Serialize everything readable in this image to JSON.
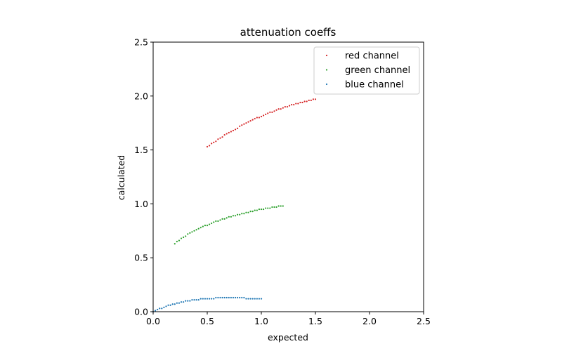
{
  "chart_data": {
    "type": "scatter",
    "title": "attenuation coeffs",
    "xlabel": "expected",
    "ylabel": "calculated",
    "xlim": [
      0,
      2.5
    ],
    "ylim": [
      0,
      2.5
    ],
    "xticks": [
      "0.0",
      "0.5",
      "1.0",
      "1.5",
      "2.0",
      "2.5"
    ],
    "yticks": [
      "0.0",
      "0.5",
      "1.0",
      "1.5",
      "2.0",
      "2.5"
    ],
    "grid": false,
    "legend_position": "top-right",
    "series": [
      {
        "name": "red channel",
        "color": "#d62728",
        "x": [
          0.5,
          0.52,
          0.54,
          0.56,
          0.58,
          0.6,
          0.62,
          0.64,
          0.66,
          0.68,
          0.7,
          0.72,
          0.74,
          0.76,
          0.78,
          0.8,
          0.82,
          0.84,
          0.86,
          0.88,
          0.9,
          0.92,
          0.94,
          0.96,
          0.98,
          1.0,
          1.02,
          1.04,
          1.06,
          1.08,
          1.1,
          1.12,
          1.14,
          1.16,
          1.18,
          1.2,
          1.22,
          1.24,
          1.26,
          1.28,
          1.3,
          1.32,
          1.34,
          1.36,
          1.38,
          1.4,
          1.42,
          1.44,
          1.46,
          1.48,
          1.5
        ],
        "y": [
          1.53,
          1.54,
          1.56,
          1.57,
          1.58,
          1.6,
          1.61,
          1.62,
          1.64,
          1.65,
          1.66,
          1.67,
          1.68,
          1.69,
          1.7,
          1.72,
          1.73,
          1.74,
          1.75,
          1.76,
          1.77,
          1.78,
          1.79,
          1.8,
          1.8,
          1.81,
          1.82,
          1.83,
          1.84,
          1.85,
          1.85,
          1.86,
          1.87,
          1.88,
          1.88,
          1.89,
          1.9,
          1.9,
          1.91,
          1.92,
          1.92,
          1.93,
          1.93,
          1.94,
          1.94,
          1.95,
          1.95,
          1.96,
          1.96,
          1.97,
          1.97
        ]
      },
      {
        "name": "green channel",
        "color": "#2ca02c",
        "x": [
          0.2,
          0.22,
          0.24,
          0.26,
          0.28,
          0.3,
          0.32,
          0.34,
          0.36,
          0.38,
          0.4,
          0.42,
          0.44,
          0.46,
          0.48,
          0.5,
          0.52,
          0.54,
          0.56,
          0.58,
          0.6,
          0.62,
          0.64,
          0.66,
          0.68,
          0.7,
          0.72,
          0.74,
          0.76,
          0.78,
          0.8,
          0.82,
          0.84,
          0.86,
          0.88,
          0.9,
          0.92,
          0.94,
          0.96,
          0.98,
          1.0,
          1.02,
          1.04,
          1.06,
          1.08,
          1.1,
          1.12,
          1.14,
          1.16,
          1.18,
          1.2
        ],
        "y": [
          0.63,
          0.65,
          0.66,
          0.68,
          0.69,
          0.7,
          0.72,
          0.73,
          0.74,
          0.75,
          0.76,
          0.77,
          0.78,
          0.79,
          0.8,
          0.8,
          0.81,
          0.82,
          0.83,
          0.84,
          0.84,
          0.85,
          0.86,
          0.86,
          0.87,
          0.88,
          0.88,
          0.89,
          0.89,
          0.9,
          0.9,
          0.91,
          0.91,
          0.92,
          0.92,
          0.93,
          0.93,
          0.94,
          0.94,
          0.95,
          0.95,
          0.95,
          0.96,
          0.96,
          0.96,
          0.97,
          0.97,
          0.97,
          0.98,
          0.98,
          0.98
        ]
      },
      {
        "name": "blue channel",
        "color": "#1f77b4",
        "x": [
          0.0,
          0.02,
          0.04,
          0.06,
          0.08,
          0.1,
          0.12,
          0.14,
          0.16,
          0.18,
          0.2,
          0.22,
          0.24,
          0.26,
          0.28,
          0.3,
          0.32,
          0.34,
          0.36,
          0.38,
          0.4,
          0.42,
          0.44,
          0.46,
          0.48,
          0.5,
          0.52,
          0.54,
          0.56,
          0.58,
          0.6,
          0.62,
          0.64,
          0.66,
          0.68,
          0.7,
          0.72,
          0.74,
          0.76,
          0.78,
          0.8,
          0.82,
          0.84,
          0.86,
          0.88,
          0.9,
          0.92,
          0.94,
          0.96,
          0.98,
          1.0
        ],
        "y": [
          0.0,
          0.01,
          0.02,
          0.03,
          0.03,
          0.04,
          0.05,
          0.06,
          0.06,
          0.07,
          0.07,
          0.08,
          0.08,
          0.09,
          0.09,
          0.1,
          0.1,
          0.1,
          0.11,
          0.11,
          0.11,
          0.11,
          0.12,
          0.12,
          0.12,
          0.12,
          0.12,
          0.12,
          0.12,
          0.13,
          0.13,
          0.13,
          0.13,
          0.13,
          0.13,
          0.13,
          0.13,
          0.13,
          0.13,
          0.13,
          0.13,
          0.13,
          0.13,
          0.12,
          0.12,
          0.12,
          0.12,
          0.12,
          0.12,
          0.12,
          0.12
        ]
      }
    ]
  }
}
